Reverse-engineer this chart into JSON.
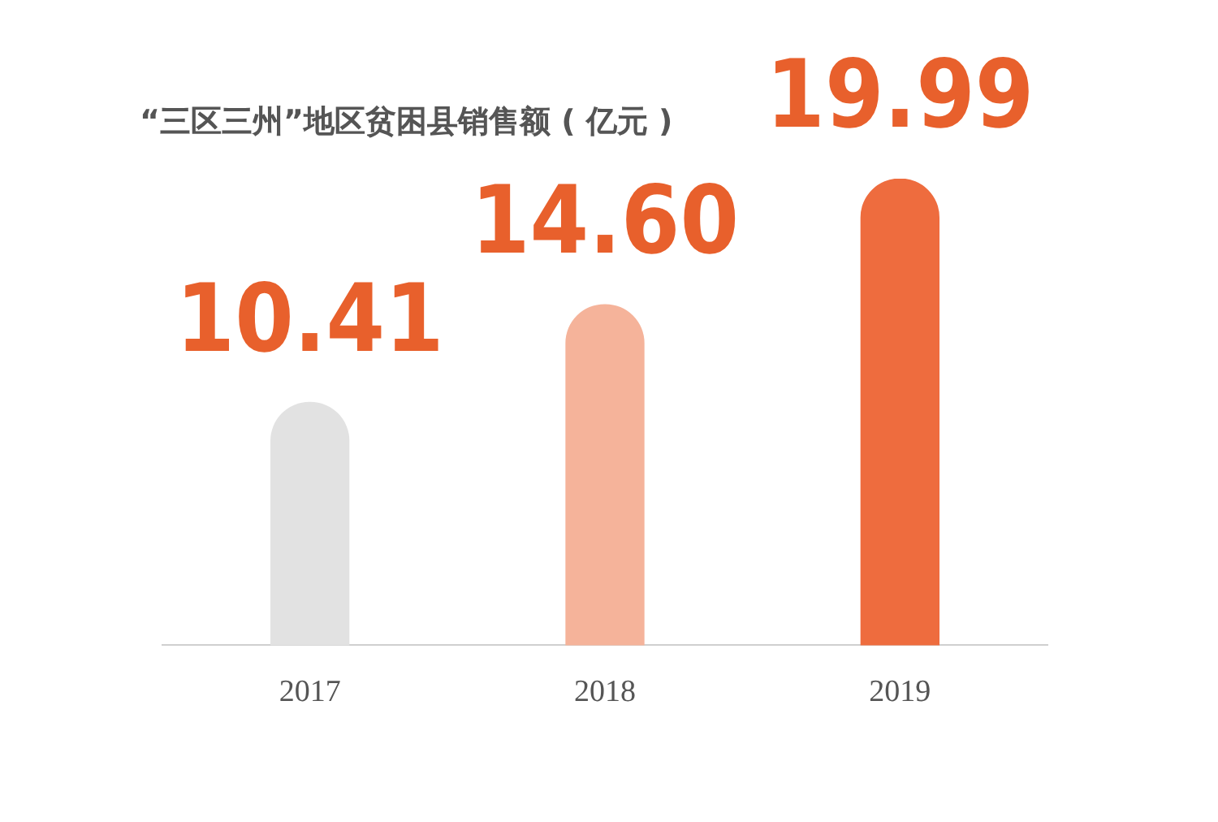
{
  "chart_data": {
    "type": "bar",
    "title": "“三区三州”地区贫困县销售额 ( 亿元 )",
    "categories": [
      "2017",
      "2018",
      "2019"
    ],
    "values": [
      10.41,
      14.6,
      19.99
    ],
    "colors": [
      "#e2e2e2",
      "#f5b39a",
      "#ee6c3e"
    ],
    "value_labels": [
      "10.41",
      "14.60",
      "19.99"
    ],
    "grid": false,
    "legend": false
  }
}
